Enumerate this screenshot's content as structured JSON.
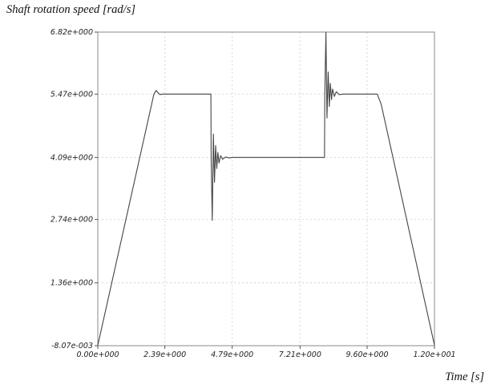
{
  "chart_data": {
    "type": "line",
    "ylabel": "Shaft rotation speed [rad/s]",
    "xlabel": "Time [s]",
    "xlim": [
      0.0,
      12.0
    ],
    "ylim": [
      -0.00807,
      6.82
    ],
    "grid": true,
    "x_ticks": [
      0.0,
      2.39,
      4.79,
      7.21,
      9.6,
      12.0
    ],
    "x_tick_labels": [
      "0.00e+000",
      "2.39e+000",
      "4.79e+000",
      "7.21e+000",
      "9.60e+000",
      "1.20e+001"
    ],
    "y_ticks": [
      -0.00807,
      1.36,
      2.74,
      4.09,
      5.47,
      6.82
    ],
    "y_tick_labels": [
      "-8.07e-003",
      "1.36e+000",
      "2.74e+000",
      "4.09e+000",
      "5.47e+000",
      "6.82e+000"
    ],
    "series": [
      {
        "color": "#444444",
        "x": [
          0.0,
          2.0,
          2.08,
          2.14,
          2.22,
          2.3,
          4.03,
          4.04,
          4.08,
          4.12,
          4.16,
          4.2,
          4.24,
          4.28,
          4.32,
          4.38,
          4.45,
          4.55,
          4.7,
          4.8,
          8.08,
          8.09,
          8.13,
          8.17,
          8.21,
          8.25,
          8.29,
          8.33,
          8.37,
          8.43,
          8.5,
          8.6,
          8.75,
          9.96,
          10.1,
          12.0
        ],
        "y": [
          0.0,
          5.47,
          5.55,
          5.5,
          5.46,
          5.47,
          5.47,
          4.09,
          2.72,
          4.6,
          3.55,
          4.35,
          3.85,
          4.2,
          3.97,
          4.13,
          4.05,
          4.1,
          4.08,
          4.09,
          4.09,
          5.47,
          6.82,
          4.95,
          5.95,
          5.2,
          5.7,
          5.35,
          5.58,
          5.42,
          5.52,
          5.46,
          5.47,
          5.47,
          5.25,
          0.0
        ]
      }
    ]
  }
}
